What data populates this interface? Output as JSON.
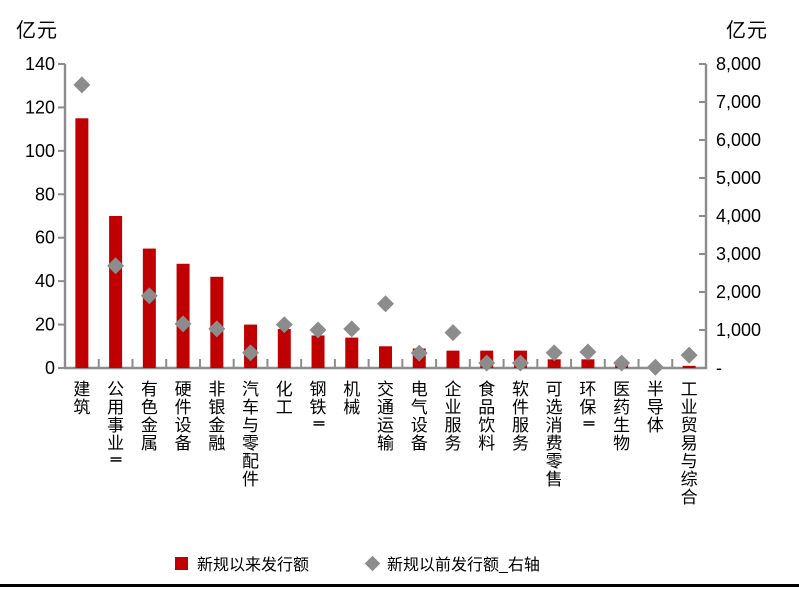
{
  "chart": {
    "left_axis": {
      "unit": "亿元",
      "min": 0,
      "max": 140,
      "tick_step": 20,
      "tick_labels": [
        "0",
        "20",
        "40",
        "60",
        "80",
        "100",
        "120",
        "140"
      ]
    },
    "right_axis": {
      "unit": "亿元",
      "min": 0,
      "max": 8000,
      "tick_step": 1000,
      "tick_labels": [
        "-",
        "1,000",
        "2,000",
        "3,000",
        "4,000",
        "5,000",
        "6,000",
        "7,000",
        "8,000"
      ]
    },
    "legend": [
      {
        "label": "新规以来发行额",
        "marker": "square",
        "color": "#C00000"
      },
      {
        "label": "新规以前发行额_右轴",
        "marker": "diamond",
        "color": "#8C8C8C"
      }
    ],
    "colors": {
      "bar": "#C00000",
      "diamond": "#8C8C8C",
      "axis": "#8C8C8C",
      "text": "#000000"
    }
  },
  "chart_data": {
    "type": "bar",
    "title": "",
    "xlabel": "",
    "ylabel_left": "亿元",
    "ylabel_right": "亿元",
    "grid": false,
    "legend_position": "bottom",
    "left_ylim": [
      0,
      140
    ],
    "right_ylim": [
      0,
      8000
    ],
    "categories": [
      "建筑",
      "公用事业Ⅱ",
      "有色金属",
      "硬件设备",
      "非银金融",
      "汽车与零配件",
      "化工",
      "钢铁Ⅱ",
      "机械",
      "交通运输",
      "电气设备",
      "企业服务",
      "食品饮料",
      "软件服务",
      "可选消费零售",
      "环保Ⅱ",
      "医药生物",
      "半导体",
      "工业贸易与综合"
    ],
    "series": [
      {
        "name": "新规以来发行额",
        "type": "bar",
        "axis": "left",
        "color": "#C00000",
        "values": [
          115,
          70,
          55,
          48,
          42,
          20,
          18,
          15,
          14,
          10,
          9,
          8,
          8,
          8,
          4,
          4,
          2,
          0.4,
          1
        ]
      },
      {
        "name": "新规以前发行额_右轴",
        "type": "scatter",
        "marker": "diamond",
        "axis": "right",
        "color": "#8C8C8C",
        "values": [
          7450,
          2690,
          1900,
          1160,
          1030,
          400,
          1140,
          1000,
          1030,
          1690,
          390,
          930,
          130,
          130,
          400,
          420,
          130,
          20,
          340
        ]
      }
    ]
  }
}
